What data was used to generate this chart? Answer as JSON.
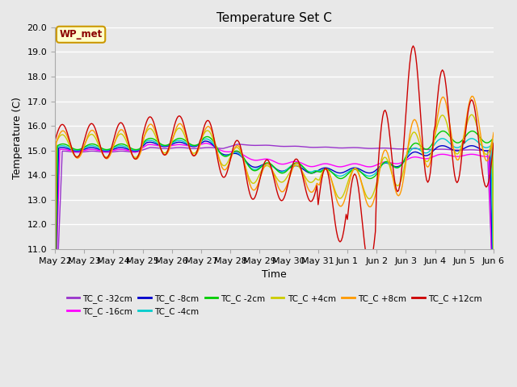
{
  "title": "Temperature Set C",
  "xlabel": "Time",
  "ylabel": "Temperature (C)",
  "ylim": [
    11.0,
    20.0
  ],
  "yticks": [
    11.0,
    12.0,
    13.0,
    14.0,
    15.0,
    16.0,
    17.0,
    18.0,
    19.0,
    20.0
  ],
  "background_color": "#e8e8e8",
  "plot_bg_color": "#e8e8e8",
  "grid_color": "#ffffff",
  "series": [
    {
      "label": "TC_C -32cm",
      "color": "#9933cc"
    },
    {
      "label": "TC_C -16cm",
      "color": "#ff00ff"
    },
    {
      "label": "TC_C -8cm",
      "color": "#0000cc"
    },
    {
      "label": "TC_C -4cm",
      "color": "#00cccc"
    },
    {
      "label": "TC_C -2cm",
      "color": "#00cc00"
    },
    {
      "label": "TC_C +4cm",
      "color": "#cccc00"
    },
    {
      "label": "TC_C +8cm",
      "color": "#ff9900"
    },
    {
      "label": "TC_C +12cm",
      "color": "#cc0000"
    }
  ],
  "xtick_labels": [
    "May 22",
    "May 23",
    "May 24",
    "May 25",
    "May 26",
    "May 27",
    "May 28",
    "May 29",
    "May 30",
    "May 31",
    "Jun 1",
    "Jun 2",
    "Jun 3",
    "Jun 4",
    "Jun 5",
    "Jun 6"
  ],
  "annotation_text": "WP_met",
  "annotation_bg": "#ffffcc",
  "annotation_border": "#cc9900"
}
